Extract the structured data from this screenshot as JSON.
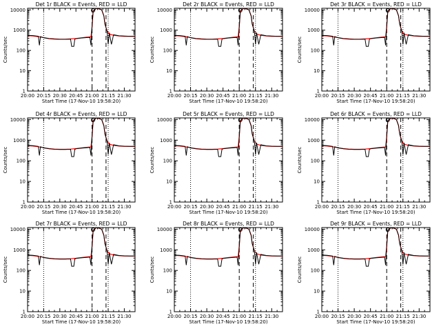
{
  "chart_data": {
    "type": "line",
    "x_unit": "time (HH:MM)",
    "ylabel": "Counts/sec",
    "xlabel": "Start Time (17-Nov-10 19:58:20)",
    "yscale": "log",
    "ylim": [
      1,
      12000
    ],
    "xlim": [
      "20:00",
      "21:40"
    ],
    "x_ticks": [
      "20:00",
      "20:15",
      "20:30",
      "20:45",
      "21:00",
      "21:15",
      "21:30"
    ],
    "y_ticks": [
      "1",
      "10",
      "100",
      "1000",
      "10000"
    ],
    "dotted_vlines": [
      "20:15",
      "21:15"
    ],
    "dashed_vlines": [
      "21:00",
      "21:13"
    ],
    "series_colors": {
      "events": "#000000",
      "lld": "#ff0000"
    },
    "legend": "title",
    "grid": false,
    "panels": [
      {
        "title": "Det 1r BLACK = Events, RED = LLD"
      },
      {
        "title": "Det 2r BLACK = Events, RED = LLD"
      },
      {
        "title": "Det 3r BLACK = Events, RED = LLD"
      },
      {
        "title": "Det 4r BLACK = Events, RED = LLD"
      },
      {
        "title": "Det 5r BLACK = Events, RED = LLD"
      },
      {
        "title": "Det 6r BLACK = Events, RED = LLD"
      },
      {
        "title": "Det 7r BLACK = Events, RED = LLD"
      },
      {
        "title": "Det 8r BLACK = Events, RED = LLD"
      },
      {
        "title": "Det 9r BLACK = Events, RED = LLD"
      }
    ],
    "series": [
      {
        "key": "lld",
        "x": [
          "20:00",
          "20:05",
          "20:10",
          "20:15",
          "20:20",
          "20:25",
          "20:30",
          "20:35",
          "20:40",
          "20:45",
          "20:50",
          "20:55",
          "20:59",
          "21:00",
          "21:01",
          "21:04",
          "21:07",
          "21:09",
          "21:11",
          "21:12",
          "21:14",
          "21:16",
          "21:20",
          "21:25",
          "21:30",
          "21:35",
          "21:40"
        ],
        "values": [
          540,
          520,
          480,
          430,
          390,
          370,
          360,
          360,
          370,
          390,
          420,
          450,
          470,
          1500,
          9000,
          12000,
          11000,
          10000,
          5000,
          2000,
          900,
          650,
          560,
          520,
          500,
          500,
          500
        ]
      },
      {
        "key": "events",
        "x": [
          "20:00",
          "20:05",
          "20:10",
          "20:11",
          "20:12",
          "20:15",
          "20:20",
          "20:25",
          "20:30",
          "20:35",
          "20:40",
          "20:41",
          "20:43",
          "20:44",
          "20:45",
          "20:50",
          "20:55",
          "20:58",
          "20:59",
          "21:00",
          "21:01",
          "21:04",
          "21:07",
          "21:09",
          "21:11",
          "21:12",
          "21:14",
          "21:15",
          "21:16",
          "21:18",
          "21:20",
          "21:25",
          "21:30",
          "21:35",
          "21:40"
        ],
        "values": [
          560,
          540,
          500,
          180,
          480,
          420,
          380,
          360,
          355,
          355,
          360,
          160,
          160,
          360,
          380,
          410,
          430,
          440,
          180,
          1400,
          8500,
          12000,
          11000,
          10000,
          5000,
          2000,
          900,
          200,
          750,
          200,
          600,
          530,
          510,
          500,
          500
        ]
      }
    ]
  }
}
